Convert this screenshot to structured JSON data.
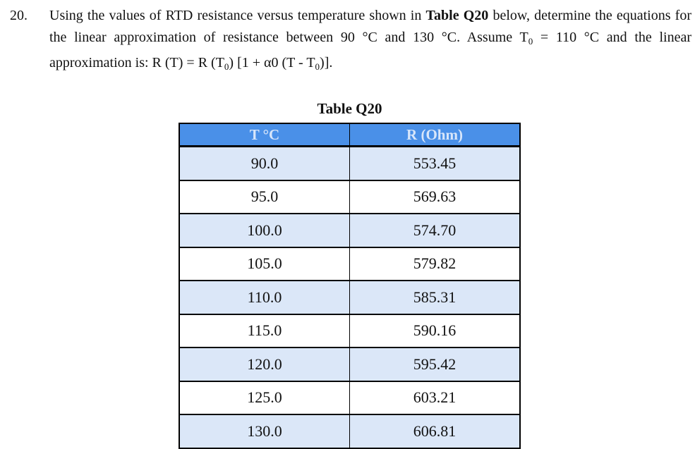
{
  "question": {
    "number": "20.",
    "segments": [
      {
        "text": "Using the values of RTD resistance versus temperature shown in "
      },
      {
        "text": "Table Q20",
        "style": "bold"
      },
      {
        "text": " below, determine the equations for the linear approximation of resistance between 90 °C and 130 °C. Assume T"
      },
      {
        "text": "0",
        "style": "sub"
      },
      {
        "text": " = 110 °C and the linear approximation is: R (T) = R (T"
      },
      {
        "text": "0",
        "style": "sub"
      },
      {
        "text": ") [1 + α0 (T - T"
      },
      {
        "text": "0",
        "style": "sub"
      },
      {
        "text": ")]."
      }
    ]
  },
  "table": {
    "title": "Table Q20",
    "headers": [
      "T °C",
      "R (Ohm)"
    ],
    "rows": [
      [
        "90.0",
        "553.45"
      ],
      [
        "95.0",
        "569.63"
      ],
      [
        "100.0",
        "574.70"
      ],
      [
        "105.0",
        "579.82"
      ],
      [
        "110.0",
        "585.31"
      ],
      [
        "115.0",
        "590.16"
      ],
      [
        "120.0",
        "595.42"
      ],
      [
        "125.0",
        "603.21"
      ],
      [
        "130.0",
        "606.81"
      ]
    ],
    "colors": {
      "header_bg": "#4a90e8",
      "header_text": "#d8e6fa",
      "row_alt_bg": "#dbe7f8",
      "row_bg": "#ffffff",
      "border": "#000000"
    }
  },
  "chart_data": {
    "type": "table",
    "title": "Table Q20",
    "columns": [
      "T °C",
      "R (Ohm)"
    ],
    "rows": [
      [
        90.0,
        553.45
      ],
      [
        95.0,
        569.63
      ],
      [
        100.0,
        574.7
      ],
      [
        105.0,
        579.82
      ],
      [
        110.0,
        585.31
      ],
      [
        115.0,
        590.16
      ],
      [
        120.0,
        595.42
      ],
      [
        125.0,
        603.21
      ],
      [
        130.0,
        606.81
      ]
    ]
  }
}
